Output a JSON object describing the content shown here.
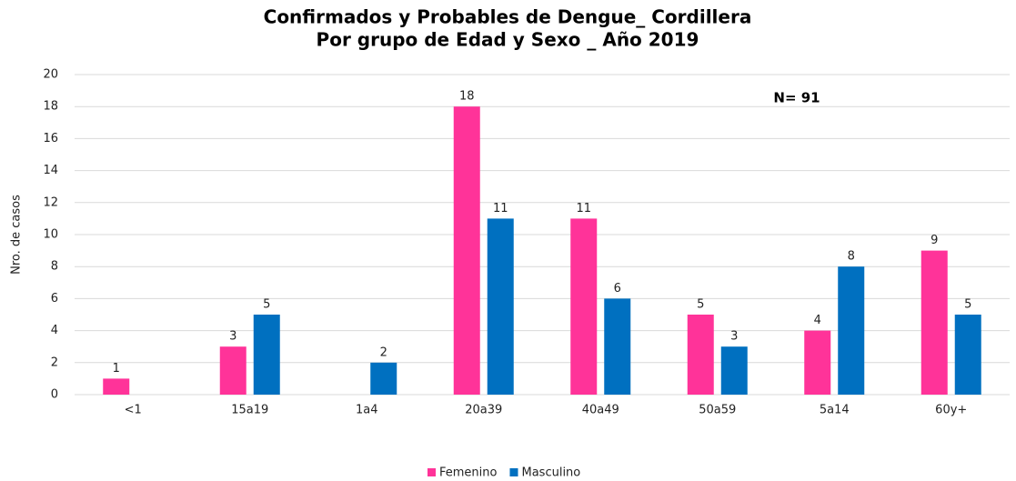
{
  "chart_data": {
    "type": "bar",
    "title": [
      "Confirmados y Probables de Dengue_ Cordillera",
      "Por grupo de Edad y Sexo _ Año 2019"
    ],
    "y_label": "Nro. de casos",
    "annotation": "N= 91",
    "categories": [
      "<1",
      "15a19",
      "1a4",
      "20a39",
      "40a49",
      "50a59",
      "5a14",
      "60y+"
    ],
    "series": [
      {
        "name": "Femenino",
        "color": "#ff3399",
        "values": [
          1,
          3,
          null,
          18,
          11,
          5,
          4,
          9
        ]
      },
      {
        "name": "Masculino",
        "color": "#0070c0",
        "values": [
          null,
          5,
          2,
          11,
          6,
          3,
          8,
          5
        ]
      }
    ],
    "ylim": [
      0,
      20
    ],
    "yticks": [
      0,
      2,
      4,
      6,
      8,
      10,
      12,
      14,
      16,
      18,
      20
    ],
    "grid": true,
    "legend": "bottom"
  }
}
